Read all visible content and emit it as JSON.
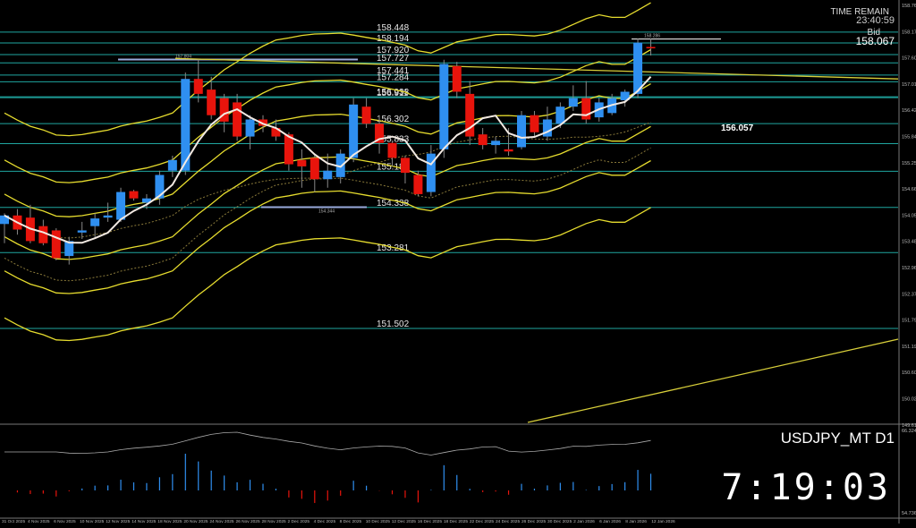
{
  "chart_data": {
    "type": "candlestick",
    "symbol": "USDJPY_MT D1",
    "clock": "7:19:03",
    "time_remain_label": "TIME REMAIN",
    "time_remain": "23:40:59",
    "bid_label": "Bid",
    "bid": "158.067",
    "ylim": [
      149.3,
      159.2
    ],
    "price_axis_ticks": [
      "158.765",
      "158.175",
      "157.600",
      "157.015",
      "156.425",
      "155.845",
      "155.255",
      "154.665",
      "154.050",
      "153.480",
      "152.960",
      "152.370",
      "151.795",
      "151.190",
      "150.605",
      "150.020",
      "149.610"
    ],
    "levels": [
      {
        "price": 158.448,
        "label": "158.448"
      },
      {
        "price": 158.194,
        "label": "158.194"
      },
      {
        "price": 157.92,
        "label": "157.920"
      },
      {
        "price": 157.727,
        "label": "157.727"
      },
      {
        "price": 157.441,
        "label": "157.441"
      },
      {
        "price": 157.284,
        "label": "157.284"
      },
      {
        "price": 156.933,
        "label": "156.933"
      },
      {
        "price": 156.911,
        "label": "156.911"
      },
      {
        "price": 156.302,
        "label": "156.302"
      },
      {
        "price": 155.833,
        "label": "155.833"
      },
      {
        "price": 155.187,
        "label": "155.187"
      },
      {
        "price": 154.338,
        "label": "154.338"
      },
      {
        "price": 153.281,
        "label": "153.281"
      },
      {
        "price": 151.502,
        "label": "151.502"
      }
    ],
    "annotations": [
      {
        "price": 156.057,
        "label": "156.057"
      },
      {
        "price": 157.804,
        "label": "157.804"
      },
      {
        "price": 154.344,
        "label": "154.344"
      },
      {
        "price": 158.286,
        "label": "158.286"
      }
    ],
    "x_labels": [
      "31 Oct 2025",
      "4 Nov 2025",
      "6 Nov 2025",
      "10 Nov 2025",
      "12 Nov 2025",
      "14 Nov 2025",
      "18 Nov 2025",
      "20 Nov 2025",
      "24 Nov 2025",
      "26 Nov 2025",
      "28 Nov 2025",
      "2 Dec 2025",
      "4 Dec 2025",
      "8 Dec 2025",
      "10 Dec 2025",
      "12 Dec 2025",
      "16 Dec 2025",
      "18 Dec 2025",
      "22 Dec 2025",
      "24 Dec 2025",
      "26 Dec 2025",
      "30 Dec 2025",
      "2 Jan 2026",
      "6 Jan 2026",
      "8 Jan 2026",
      "12 Jan 2026"
    ],
    "candles": [
      {
        "o": 153.95,
        "h": 154.2,
        "l": 153.5,
        "c": 154.15
      },
      {
        "o": 154.15,
        "h": 154.3,
        "l": 153.7,
        "c": 153.82
      },
      {
        "o": 154.1,
        "h": 154.4,
        "l": 153.5,
        "c": 153.55
      },
      {
        "o": 153.9,
        "h": 154.05,
        "l": 153.45,
        "c": 153.5
      },
      {
        "o": 153.8,
        "h": 153.85,
        "l": 153.1,
        "c": 153.15
      },
      {
        "o": 153.2,
        "h": 153.65,
        "l": 153.0,
        "c": 153.55
      },
      {
        "o": 153.75,
        "h": 154.0,
        "l": 153.6,
        "c": 153.8
      },
      {
        "o": 153.9,
        "h": 154.2,
        "l": 153.6,
        "c": 154.08
      },
      {
        "o": 154.1,
        "h": 154.45,
        "l": 154.0,
        "c": 154.15
      },
      {
        "o": 154.05,
        "h": 154.8,
        "l": 154.0,
        "c": 154.7
      },
      {
        "o": 154.72,
        "h": 154.75,
        "l": 154.5,
        "c": 154.55
      },
      {
        "o": 154.45,
        "h": 154.65,
        "l": 154.3,
        "c": 154.55
      },
      {
        "o": 154.55,
        "h": 155.2,
        "l": 154.4,
        "c": 155.1
      },
      {
        "o": 155.2,
        "h": 155.55,
        "l": 155.05,
        "c": 155.45
      },
      {
        "o": 155.2,
        "h": 157.5,
        "l": 155.1,
        "c": 157.35
      },
      {
        "o": 157.35,
        "h": 157.8,
        "l": 156.8,
        "c": 157.0
      },
      {
        "o": 157.1,
        "h": 157.4,
        "l": 156.4,
        "c": 156.5
      },
      {
        "o": 156.9,
        "h": 157.0,
        "l": 156.1,
        "c": 156.35
      },
      {
        "o": 156.8,
        "h": 157.0,
        "l": 155.9,
        "c": 156.0
      },
      {
        "o": 156.0,
        "h": 156.5,
        "l": 155.7,
        "c": 156.4
      },
      {
        "o": 156.4,
        "h": 156.5,
        "l": 156.1,
        "c": 156.25
      },
      {
        "o": 156.2,
        "h": 156.4,
        "l": 155.9,
        "c": 156.0
      },
      {
        "o": 156.05,
        "h": 156.1,
        "l": 155.2,
        "c": 155.35
      },
      {
        "o": 155.45,
        "h": 155.7,
        "l": 154.8,
        "c": 155.3
      },
      {
        "o": 155.5,
        "h": 155.6,
        "l": 154.7,
        "c": 155.0
      },
      {
        "o": 155.0,
        "h": 155.6,
        "l": 154.8,
        "c": 155.2
      },
      {
        "o": 155.05,
        "h": 155.7,
        "l": 154.9,
        "c": 155.6
      },
      {
        "o": 155.5,
        "h": 156.9,
        "l": 155.4,
        "c": 156.75
      },
      {
        "o": 156.7,
        "h": 156.9,
        "l": 156.2,
        "c": 156.3
      },
      {
        "o": 156.3,
        "h": 156.5,
        "l": 155.6,
        "c": 155.85
      },
      {
        "o": 155.85,
        "h": 155.9,
        "l": 155.3,
        "c": 155.5
      },
      {
        "o": 155.5,
        "h": 155.55,
        "l": 154.9,
        "c": 155.15
      },
      {
        "o": 155.1,
        "h": 155.2,
        "l": 154.6,
        "c": 154.65
      },
      {
        "o": 154.7,
        "h": 155.8,
        "l": 154.6,
        "c": 155.6
      },
      {
        "o": 155.7,
        "h": 157.8,
        "l": 155.5,
        "c": 157.7
      },
      {
        "o": 157.65,
        "h": 157.75,
        "l": 156.9,
        "c": 157.05
      },
      {
        "o": 157.0,
        "h": 157.3,
        "l": 155.8,
        "c": 156.0
      },
      {
        "o": 156.05,
        "h": 156.2,
        "l": 155.7,
        "c": 155.8
      },
      {
        "o": 155.8,
        "h": 156.0,
        "l": 155.6,
        "c": 155.9
      },
      {
        "o": 155.7,
        "h": 156.2,
        "l": 155.55,
        "c": 155.65
      },
      {
        "o": 155.75,
        "h": 156.6,
        "l": 155.7,
        "c": 156.5
      },
      {
        "o": 156.5,
        "h": 156.6,
        "l": 156.0,
        "c": 156.1
      },
      {
        "o": 156.0,
        "h": 156.7,
        "l": 155.9,
        "c": 156.4
      },
      {
        "o": 156.3,
        "h": 156.8,
        "l": 156.2,
        "c": 156.7
      },
      {
        "o": 156.7,
        "h": 157.2,
        "l": 156.6,
        "c": 156.9
      },
      {
        "o": 156.9,
        "h": 157.3,
        "l": 156.3,
        "c": 156.4
      },
      {
        "o": 156.45,
        "h": 156.9,
        "l": 156.35,
        "c": 156.8
      },
      {
        "o": 156.55,
        "h": 157.0,
        "l": 156.5,
        "c": 156.9
      },
      {
        "o": 156.85,
        "h": 157.1,
        "l": 156.7,
        "c": 157.05
      },
      {
        "o": 157.0,
        "h": 158.3,
        "l": 156.9,
        "c": 158.2
      },
      {
        "o": 158.1,
        "h": 158.3,
        "l": 157.9,
        "c": 158.067
      }
    ],
    "oscillator_ticks": [
      "66.3249",
      "54.7368"
    ]
  }
}
